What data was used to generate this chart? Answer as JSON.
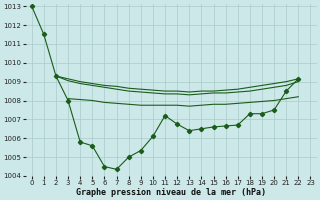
{
  "xlabel": "Graphe pression niveau de la mer (hPa)",
  "x": [
    0,
    1,
    2,
    3,
    4,
    5,
    6,
    7,
    8,
    9,
    10,
    11,
    12,
    13,
    14,
    15,
    16,
    17,
    18,
    19,
    20,
    21,
    22,
    23
  ],
  "line_main": [
    1013.0,
    1011.5,
    1009.3,
    1008.0,
    1005.8,
    1005.6,
    1004.5,
    1004.35,
    1005.0,
    1005.35,
    1006.1,
    1007.2,
    1006.75,
    1006.4,
    1006.5,
    1006.6,
    1006.65,
    1006.7,
    1007.3,
    1007.3,
    1007.5,
    1008.5,
    1009.15,
    null
  ],
  "line_env1": [
    null,
    null,
    1009.3,
    1009.15,
    1009.0,
    1008.9,
    1008.8,
    1008.75,
    1008.65,
    1008.6,
    1008.55,
    1008.5,
    1008.5,
    1008.45,
    1008.5,
    1008.5,
    1008.55,
    1008.6,
    1008.7,
    1008.8,
    1008.9,
    1009.0,
    1009.15,
    null
  ],
  "line_env2": [
    null,
    null,
    1009.3,
    1009.05,
    1008.9,
    1008.8,
    1008.7,
    1008.6,
    1008.5,
    1008.45,
    1008.4,
    1008.35,
    1008.35,
    1008.3,
    1008.35,
    1008.4,
    1008.4,
    1008.45,
    1008.5,
    1008.6,
    1008.7,
    1008.8,
    1009.0,
    null
  ],
  "line_env3": [
    null,
    null,
    null,
    1008.1,
    1008.05,
    1008.0,
    1007.9,
    1007.85,
    1007.8,
    1007.75,
    1007.75,
    1007.75,
    1007.75,
    1007.7,
    1007.75,
    1007.8,
    1007.8,
    1007.85,
    1007.9,
    1007.95,
    1008.0,
    1008.1,
    1008.2,
    null
  ],
  "background_color": "#cce8e8",
  "grid_color": "#aacccc",
  "line_color": "#1a5c1a",
  "ylim": [
    1004,
    1013
  ],
  "yticks": [
    1004,
    1005,
    1006,
    1007,
    1008,
    1009,
    1010,
    1011,
    1012,
    1013
  ],
  "xticks": [
    0,
    1,
    2,
    3,
    4,
    5,
    6,
    7,
    8,
    9,
    10,
    11,
    12,
    13,
    14,
    15,
    16,
    17,
    18,
    19,
    20,
    21,
    22,
    23
  ],
  "marker": "D",
  "markersize": 2.2,
  "linewidth": 0.8,
  "tick_fontsize": 5.0,
  "label_fontsize": 6.0
}
